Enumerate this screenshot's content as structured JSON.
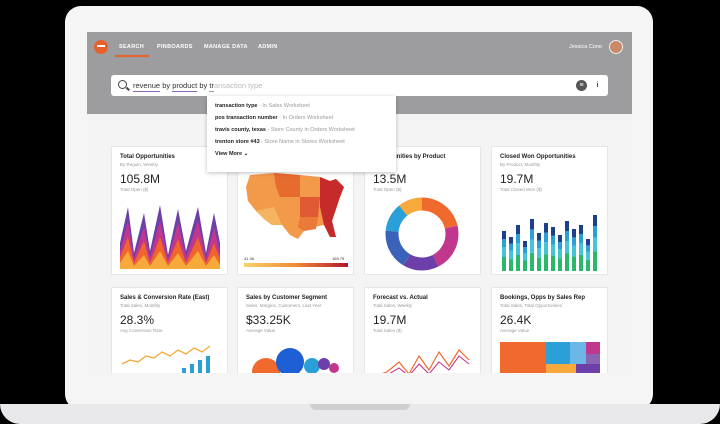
{
  "nav": {
    "search": "SEARCH",
    "pinboards": "PINBOARDS",
    "manage_data": "MANAGE DATA",
    "admin": "ADMIN"
  },
  "user": {
    "name": "Jessica Cone"
  },
  "search": {
    "tokens": [
      "revenue",
      "by",
      "product",
      "by",
      "tr"
    ],
    "placeholder": "ansaction type"
  },
  "suggestions": [
    {
      "term": "transaction type",
      "source": " - In Sales Worksheet"
    },
    {
      "term": "pos transaction number",
      "source": " - In Orders Worksheet"
    },
    {
      "term": "travis county, texas",
      "source": " - Store County in Orders Worksheet"
    },
    {
      "term": "trenton store #43",
      "source": " - Store Name in Stores Worksheet"
    }
  ],
  "view_more": "View More",
  "cards": [
    {
      "title": "Total Opportunities",
      "sub": "By Region, Weekly",
      "value": "105.8M",
      "label": "Total Open ($)"
    },
    {
      "title": "",
      "sub": "",
      "value": "",
      "label": "",
      "legend_min": "41.36",
      "legend_max": "169.75"
    },
    {
      "title": "Opportunities by Product",
      "sub": "By Quarter",
      "value": "13.5M",
      "label": "Total Open ($)"
    },
    {
      "title": "Closed Won Opportunities",
      "sub": "By Product, Monthly",
      "value": "19.7M",
      "label": "Total Closed Won ($)"
    },
    {
      "title": "Sales & Conversion Rate (East)",
      "sub": "Total Sales, Monthly",
      "value": "28.3%",
      "label": "Avg Conversion Rate"
    },
    {
      "title": "Sales by Customer Segment",
      "sub": "Sales, Margins, Customers, Last Year",
      "value": "$33.25K",
      "label": "Average Value"
    },
    {
      "title": "Forecast vs. Actual",
      "sub": "Total Sales, Weekly",
      "value": "19.7M",
      "label": "Total Sales ($)"
    },
    {
      "title": "Bookings, Opps by Sales Rep",
      "sub": "Total Sales, Total Opportunities",
      "value": "26.4K",
      "label": "Average Value"
    }
  ],
  "colors": {
    "accent": "#e8612c",
    "topbar": "#9d9d9f",
    "purple": "#8a63b3"
  }
}
